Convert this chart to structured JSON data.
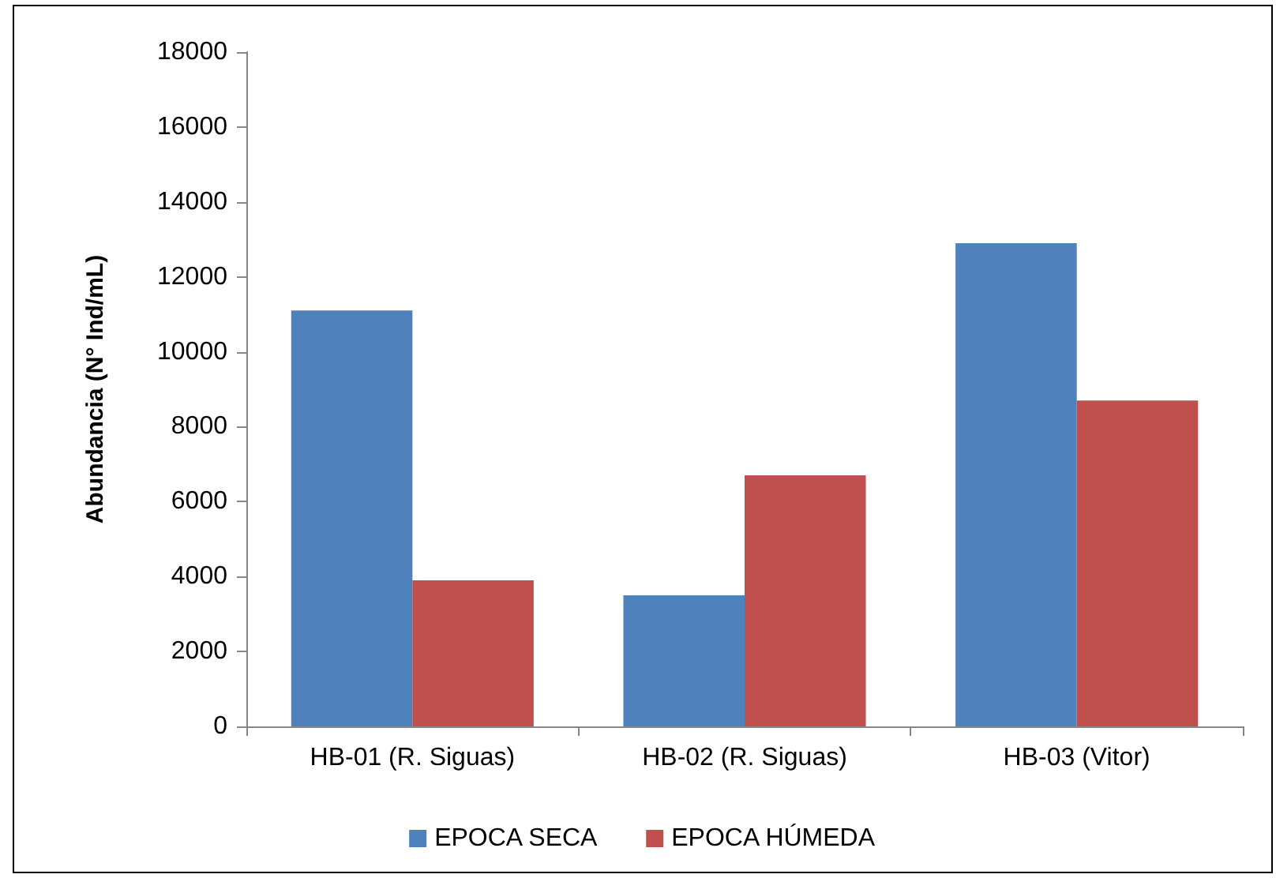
{
  "chart_data": {
    "type": "bar",
    "ylabel": "Abundancia (N° Ind/mL)",
    "categories": [
      "HB-01 (R. Siguas)",
      "HB-02 (R. Siguas)",
      "HB-03 (Vitor)"
    ],
    "series": [
      {
        "name": "EPOCA SECA",
        "color": "#4f81bd",
        "values": [
          11100,
          3500,
          12900
        ]
      },
      {
        "name": "EPOCA HÚMEDA",
        "color": "#c0504d",
        "values": [
          3900,
          6700,
          8700
        ]
      }
    ],
    "ylim": [
      0,
      18000
    ],
    "yticks": [
      0,
      2000,
      4000,
      6000,
      8000,
      10000,
      12000,
      14000,
      16000,
      18000
    ],
    "grid": false,
    "legend": "bottom"
  }
}
